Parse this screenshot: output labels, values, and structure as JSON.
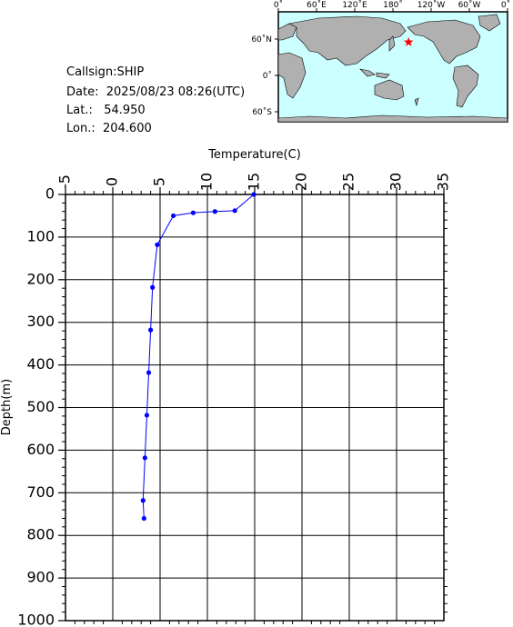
{
  "info": {
    "callsign": "Callsign:SHIP",
    "date": "Date:  2025/08/23 08:26(UTC)",
    "lat": "Lat.:   54.950",
    "lon": "Lon.:  204.600"
  },
  "map": {
    "top_labels": [
      "0˚",
      "60˚E",
      "120˚E",
      "180˚",
      "120˚W",
      "60˚W",
      "0˚"
    ],
    "left_labels": [
      "60˚N",
      "0˚",
      "60˚S"
    ],
    "ocean_color": "#ccffff",
    "land_color": "#b0b0b0",
    "marker_icon": "star",
    "marker_color": "#ff0000",
    "marker_lat": 54.95,
    "marker_lon": 204.6
  },
  "chart_data": {
    "type": "scatter",
    "xlabel": "Temperature(C)",
    "ylabel": "Depth(m)",
    "xlim": [
      -5,
      35
    ],
    "ylim": [
      1000,
      0
    ],
    "x_ticks": [
      "-5",
      "0",
      "5",
      "10",
      "15",
      "20",
      "25",
      "30",
      "35"
    ],
    "y_ticks": [
      "0",
      "100",
      "200",
      "300",
      "400",
      "500",
      "600",
      "700",
      "800",
      "900",
      "1000"
    ],
    "grid": true,
    "line_color": "#0000ff",
    "series": [
      {
        "points": [
          [
            14.9,
            0
          ],
          [
            12.9,
            38
          ],
          [
            10.8,
            40
          ],
          [
            8.5,
            43
          ],
          [
            6.4,
            50
          ],
          [
            4.7,
            118
          ],
          [
            4.2,
            218
          ],
          [
            4.0,
            318
          ],
          [
            3.8,
            418
          ],
          [
            3.6,
            518
          ],
          [
            3.4,
            618
          ],
          [
            3.2,
            718
          ],
          [
            3.3,
            760
          ]
        ]
      }
    ]
  }
}
